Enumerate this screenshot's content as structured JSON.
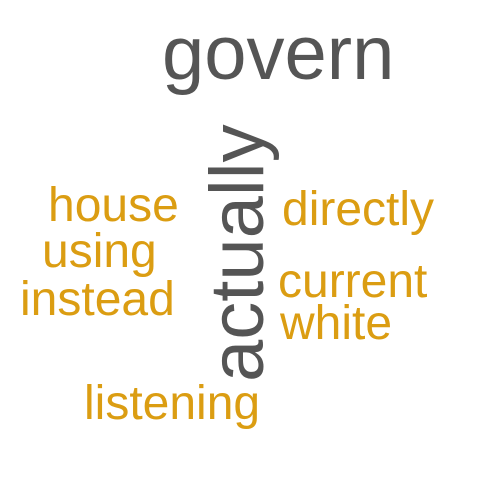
{
  "colors": {
    "primary": "#555555",
    "secondary": "#DB9D12",
    "background": "#FFFFFF"
  },
  "words": {
    "govern": "govern",
    "actually": "actually",
    "house": "house",
    "directly": "directly",
    "using": "using",
    "current": "current",
    "instead": "instead",
    "white": "white",
    "listening": "listening"
  }
}
